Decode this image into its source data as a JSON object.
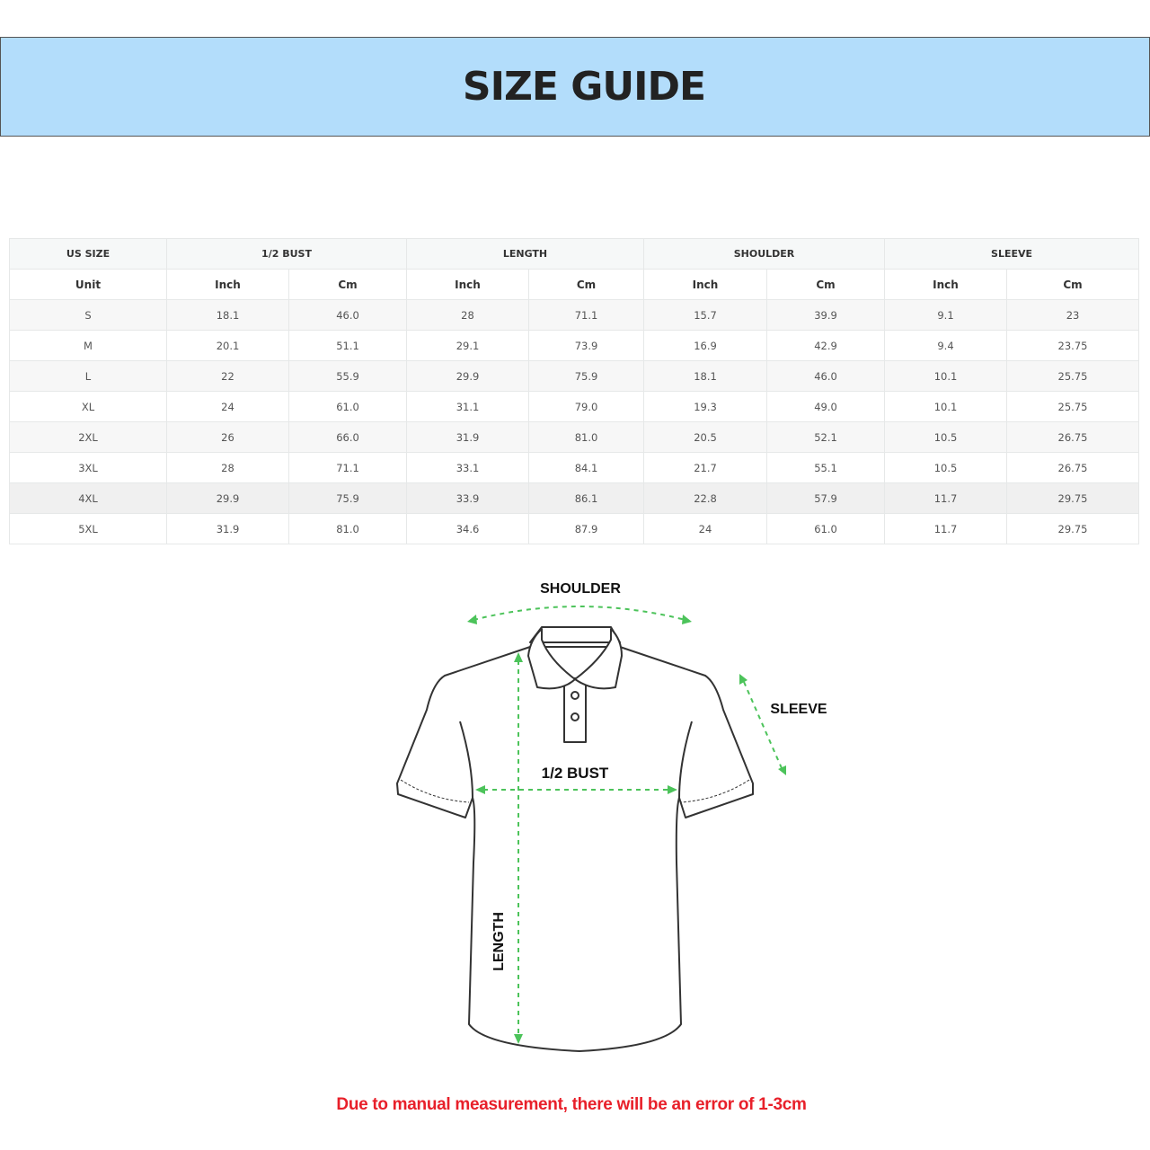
{
  "header": {
    "title": "SIZE GUIDE",
    "background": "#b3ddfb"
  },
  "table": {
    "groups": [
      "US SIZE",
      "1/2 BUST",
      "LENGTH",
      "SHOULDER",
      "SLEEVE"
    ],
    "units": [
      "Unit",
      "Inch",
      "Cm",
      "Inch",
      "Cm",
      "Inch",
      "Cm",
      "Inch",
      "Cm"
    ],
    "rows": [
      [
        "S",
        "18.1",
        "46.0",
        "28",
        "71.1",
        "15.7",
        "39.9",
        "9.1",
        "23"
      ],
      [
        "M",
        "20.1",
        "51.1",
        "29.1",
        "73.9",
        "16.9",
        "42.9",
        "9.4",
        "23.75"
      ],
      [
        "L",
        "22",
        "55.9",
        "29.9",
        "75.9",
        "18.1",
        "46.0",
        "10.1",
        "25.75"
      ],
      [
        "XL",
        "24",
        "61.0",
        "31.1",
        "79.0",
        "19.3",
        "49.0",
        "10.1",
        "25.75"
      ],
      [
        "2XL",
        "26",
        "66.0",
        "31.9",
        "81.0",
        "20.5",
        "52.1",
        "10.5",
        "26.75"
      ],
      [
        "3XL",
        "28",
        "71.1",
        "33.1",
        "84.1",
        "21.7",
        "55.1",
        "10.5",
        "26.75"
      ],
      [
        "4XL",
        "29.9",
        "75.9",
        "33.9",
        "86.1",
        "22.8",
        "57.9",
        "11.7",
        "29.75"
      ],
      [
        "5XL",
        "31.9",
        "81.0",
        "34.6",
        "87.9",
        "24",
        "61.0",
        "11.7",
        "29.75"
      ]
    ]
  },
  "diagram": {
    "labels": {
      "shoulder": "SHOULDER",
      "sleeve": "SLEEVE",
      "bust": "1/2 BUST",
      "length": "LENGTH"
    },
    "arrow_color": "#4cc35a"
  },
  "footer": {
    "note": "Due to manual measurement, there will be an error of 1-3cm",
    "color": "#e8202a"
  }
}
